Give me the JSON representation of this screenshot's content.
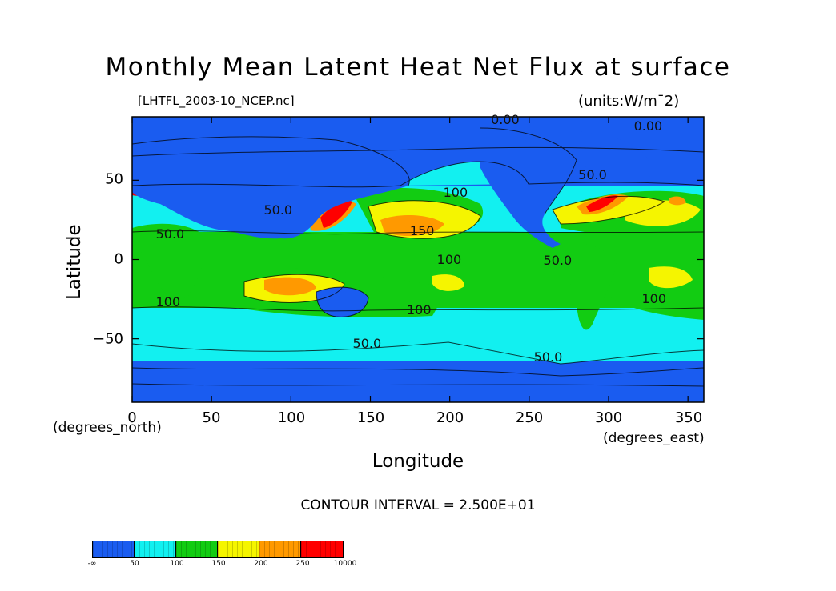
{
  "chart_data": {
    "type": "heatmap",
    "title": "Monthly Mean Latent Heat Net Flux at surface",
    "subtitle_left": "[LHTFL_2003-10_NCEP.nc]",
    "subtitle_right": "(units:W/m¯2)",
    "xlabel": "Longitude",
    "ylabel": "Latitude",
    "x_units": "(degrees_east)",
    "y_units": "(degrees_north)",
    "xlim": [
      0,
      360
    ],
    "ylim": [
      -90,
      90
    ],
    "x_ticks": [
      0,
      50,
      100,
      150,
      200,
      250,
      300,
      350
    ],
    "x_tick_labels": [
      "0",
      "50",
      "100",
      "150",
      "200",
      "250",
      "300",
      "350"
    ],
    "y_ticks": [
      50,
      0,
      -50
    ],
    "y_tick_labels": [
      "50",
      "0",
      "−50"
    ],
    "contour_interval": "CONTOUR INTERVAL = 2.500E+01",
    "contour_labels": [
      {
        "text": "0.00",
        "lon": 235,
        "lat": 88
      },
      {
        "text": "0.00",
        "lon": 325,
        "lat": 84
      },
      {
        "text": "50.0",
        "lon": 290,
        "lat": 53
      },
      {
        "text": "100",
        "lon": 205,
        "lat": 42
      },
      {
        "text": "50.0",
        "lon": 92,
        "lat": 31
      },
      {
        "text": "50.0",
        "lon": 24,
        "lat": 16
      },
      {
        "text": "150",
        "lon": 184,
        "lat": 18
      },
      {
        "text": "100",
        "lon": 201,
        "lat": 0
      },
      {
        "text": "50.0",
        "lon": 268,
        "lat": -1
      },
      {
        "text": "100",
        "lon": 24,
        "lat": -27
      },
      {
        "text": "100",
        "lon": 182,
        "lat": -32
      },
      {
        "text": "100",
        "lon": 330,
        "lat": -25
      },
      {
        "text": "50.0",
        "lon": 148,
        "lat": -53
      },
      {
        "text": "50.0",
        "lon": 262,
        "lat": -62
      }
    ],
    "colorbar": {
      "levels": [
        "-∞",
        "50",
        "100",
        "150",
        "200",
        "250",
        "10000"
      ],
      "colors": [
        "#1a5cf0",
        "#12f0f0",
        "#12cc12",
        "#f5f500",
        "#ff9900",
        "#ff0000"
      ]
    }
  }
}
